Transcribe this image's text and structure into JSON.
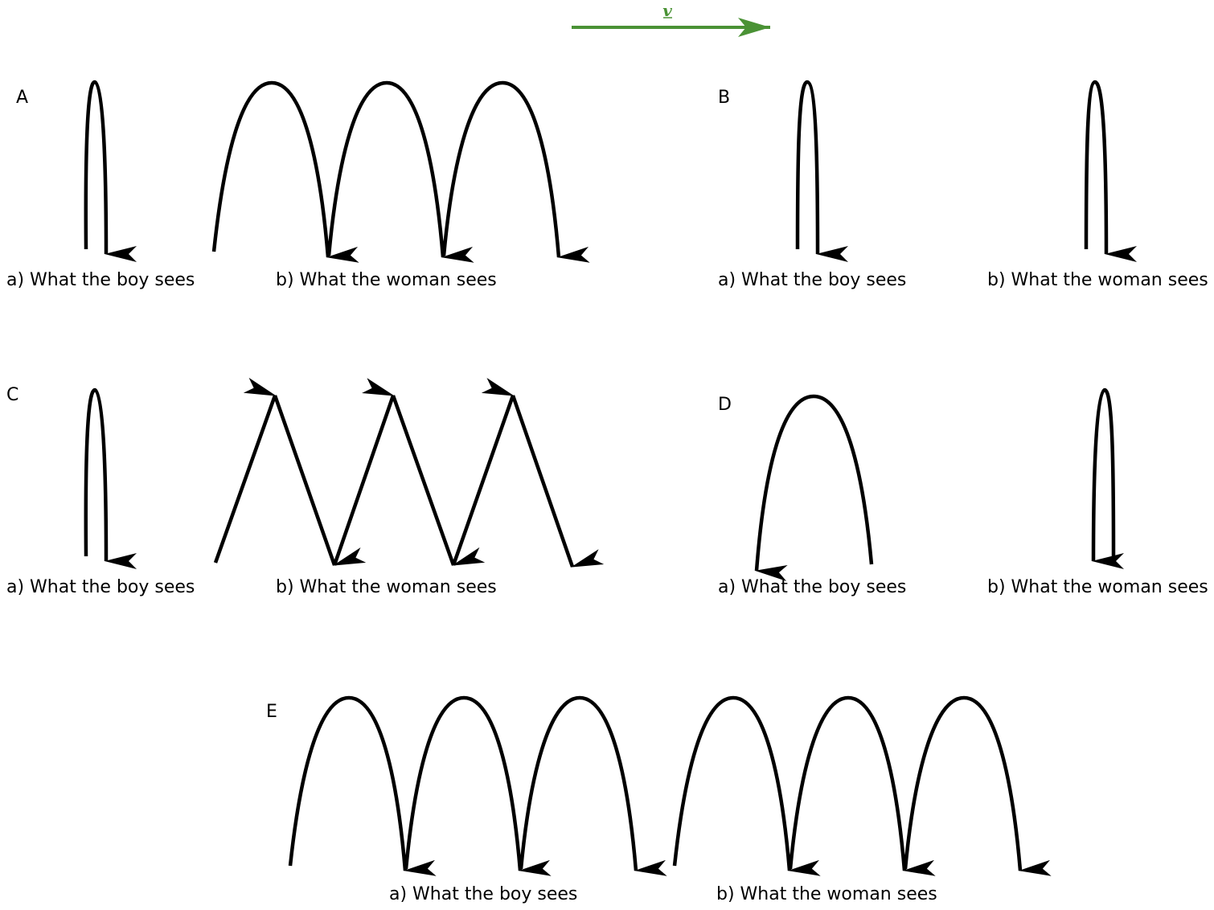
{
  "velocity": {
    "label": "v",
    "color": "#4a9235"
  },
  "options": [
    {
      "letter": "A",
      "boy_caption": "a) What the boy sees",
      "woman_caption": "b) What the woman sees"
    },
    {
      "letter": "B",
      "boy_caption": "a) What the boy sees",
      "woman_caption": "b) What the woman sees"
    },
    {
      "letter": "C",
      "boy_caption": "a) What the boy sees",
      "woman_caption": "b) What the woman sees"
    },
    {
      "letter": "D",
      "boy_caption": "a) What the boy sees",
      "woman_caption": "b) What the woman sees"
    },
    {
      "letter": "E",
      "boy_caption": "a) What the boy sees",
      "woman_caption": "b) What the woman sees"
    }
  ]
}
